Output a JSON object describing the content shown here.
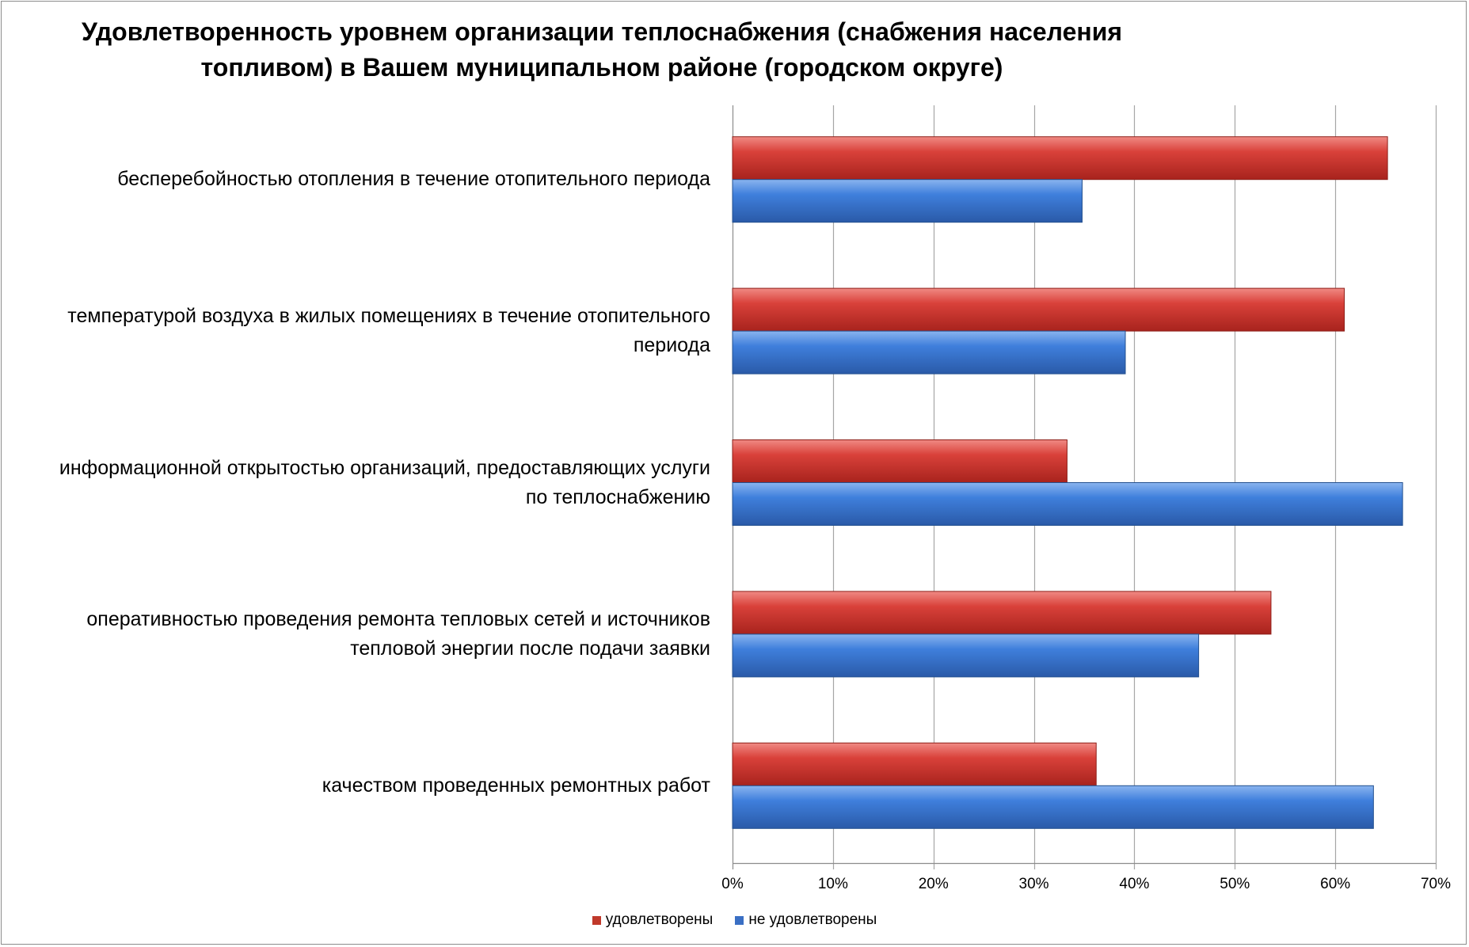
{
  "chart_data": {
    "type": "bar",
    "orientation": "horizontal",
    "title_lines": [
      "Удовлетворенность уровнем организации теплоснабжения (снабжения населения",
      "топливом) в Вашем муниципальном районе (городском округе)"
    ],
    "categories": [
      [
        "бесперебойностью  отопления в течение отопительного периода"
      ],
      [
        "температурой  воздуха в жилых помещениях в течение отопительного",
        "периода"
      ],
      [
        "информационной открытостью  организаций, предоставляющих услуги",
        "по теплоснабжению"
      ],
      [
        "оперативностью проведения ремонта тепловых сетей и источников",
        "тепловой энергии после подачи заявки"
      ],
      [
        "качеством  проведенных  ремонтных  работ"
      ]
    ],
    "series": [
      {
        "name": "удовлетворены",
        "color": "#c0392b",
        "values": [
          65.2,
          60.9,
          33.3,
          53.6,
          36.2
        ]
      },
      {
        "name": "не удовлетворены",
        "color": "#3a6fc4",
        "values": [
          34.8,
          39.1,
          66.7,
          46.4,
          63.8
        ]
      }
    ],
    "xlim": [
      0,
      70
    ],
    "xticks": [
      "0%",
      "10%",
      "20%",
      "30%",
      "40%",
      "50%",
      "60%",
      "70%"
    ],
    "grid": true,
    "legend_position": "bottom"
  }
}
